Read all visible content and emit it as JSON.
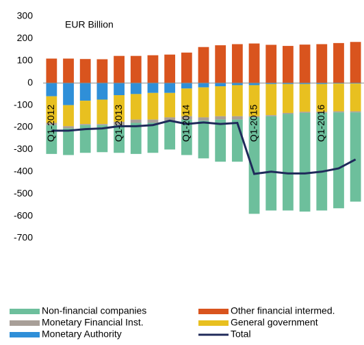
{
  "chart_data": {
    "type": "stacked_bar_line",
    "subtitle": "EUR Billion",
    "categories": [
      "Q1-2012",
      null,
      null,
      null,
      "Q1-2013",
      null,
      null,
      null,
      "Q1-2014",
      null,
      null,
      null,
      "Q1-2015",
      null,
      null,
      null,
      "Q1-2016",
      null,
      null
    ],
    "series": [
      {
        "name": "Non-financial companies",
        "color": "#6dbf9c",
        "values": [
          -130,
          -120,
          -125,
          -122,
          -125,
          -140,
          -135,
          -130,
          -160,
          -170,
          -190,
          -190,
          -435,
          -425,
          -435,
          -445,
          -440,
          -432,
          -402
        ]
      },
      {
        "name": "Other financial intermed.",
        "color": "#d9541e",
        "values": [
          110,
          110,
          108,
          107,
          122,
          122,
          125,
          128,
          137,
          162,
          170,
          175,
          178,
          172,
          167,
          173,
          175,
          180,
          185
        ]
      },
      {
        "name": "Monetary Financial Inst.",
        "color": "#a89f98",
        "values": [
          -10,
          -10,
          -5,
          -5,
          -15,
          -15,
          -15,
          -15,
          -15,
          -15,
          -15,
          -15,
          -5,
          -5,
          -5,
          -5,
          -5,
          -5,
          -5
        ]
      },
      {
        "name": "General government",
        "color": "#e8c020",
        "values": [
          -120,
          -95,
          -105,
          -110,
          -120,
          -115,
          -120,
          -110,
          -125,
          -135,
          -135,
          -140,
          -140,
          -140,
          -130,
          -125,
          -125,
          -125,
          -125
        ]
      },
      {
        "name": "Monetary Authority",
        "color": "#2f8fd8",
        "values": [
          -60,
          -100,
          -80,
          -75,
          -55,
          -50,
          -45,
          -45,
          -25,
          -20,
          -15,
          -10,
          -10,
          -5,
          -5,
          -5,
          -5,
          -3,
          -3
        ]
      },
      {
        "name": "Total",
        "color": "#1f2a5a",
        "kind": "line",
        "values": [
          -215,
          -215,
          -208,
          -205,
          -195,
          -195,
          -190,
          -170,
          -185,
          -178,
          -185,
          -180,
          -410,
          -400,
          -408,
          -408,
          -400,
          -385,
          -345
        ]
      }
    ],
    "ylim": [
      -700,
      300
    ],
    "yticks": [
      -700,
      -600,
      -500,
      -400,
      -300,
      -200,
      -100,
      0,
      100,
      200,
      300
    ],
    "legend": "bottom"
  }
}
